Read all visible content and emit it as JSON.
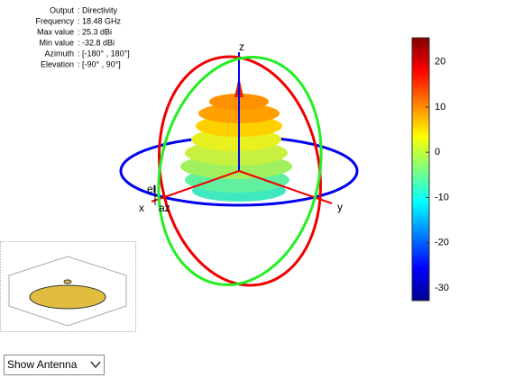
{
  "info": {
    "rows": [
      {
        "label": "Output",
        "value": ": Directivity"
      },
      {
        "label": "Frequency",
        "value": ": 18.48 GHz"
      },
      {
        "label": "Max value",
        "value": ": 25.3 dBi"
      },
      {
        "label": "Min value",
        "value": ": -32.8 dBi"
      },
      {
        "label": "Azimuth",
        "value": ": [-180° , 180°]"
      },
      {
        "label": "Elevation",
        "value": ": [-90° , 90°]"
      }
    ]
  },
  "axes": {
    "x": "x",
    "y": "y",
    "z": "z",
    "az": "az",
    "el": "el"
  },
  "colorbar": {
    "clim": [
      -32.8,
      25.3
    ],
    "ticks": [
      20,
      10,
      0,
      -10,
      -20,
      -30
    ]
  },
  "control": {
    "dropdown": "Show Antenna"
  }
}
